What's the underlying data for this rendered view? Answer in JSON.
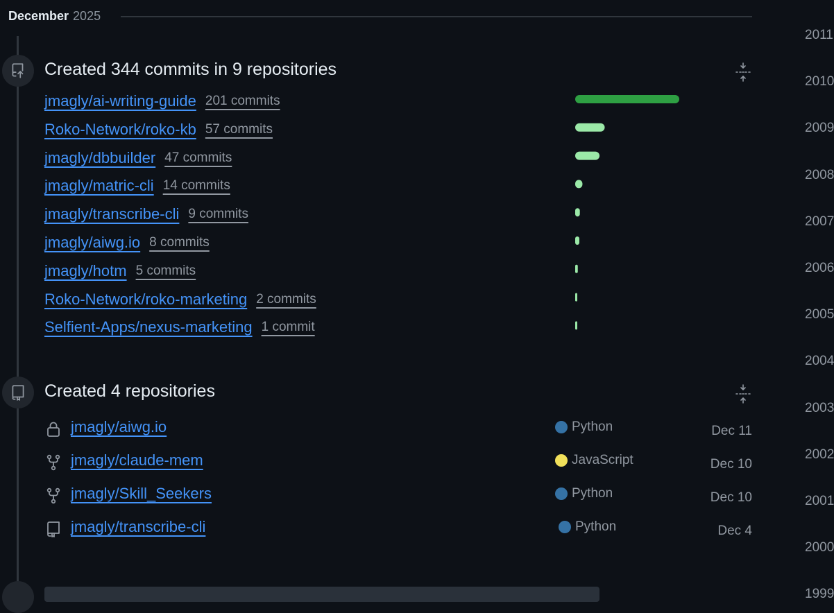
{
  "month": {
    "name": "December",
    "year": "2025"
  },
  "commits_event": {
    "title": "Created 344 commits in 9 repositories",
    "icon": "repo-push-icon",
    "collapse_icon": "fold-icon",
    "repos": [
      {
        "name": "jmagly/ai-writing-guide",
        "commits": "201 commits",
        "count": 201
      },
      {
        "name": "Roko-Network/roko-kb",
        "commits": "57 commits",
        "count": 57
      },
      {
        "name": "jmagly/dbbuilder",
        "commits": "47 commits",
        "count": 47
      },
      {
        "name": "jmagly/matric-cli",
        "commits": "14 commits",
        "count": 14
      },
      {
        "name": "jmagly/transcribe-cli",
        "commits": "9 commits",
        "count": 9
      },
      {
        "name": "jmagly/aiwg.io",
        "commits": "8 commits",
        "count": 8
      },
      {
        "name": "jmagly/hotm",
        "commits": "5 commits",
        "count": 5
      },
      {
        "name": "Roko-Network/roko-marketing",
        "commits": "2 commits",
        "count": 2
      },
      {
        "name": "Selfient-Apps/nexus-marketing",
        "commits": "1 commit",
        "count": 1
      }
    ],
    "bar_colors": {
      "top": "#2ea043",
      "rest": "#9be9a8"
    }
  },
  "repos_event": {
    "title": "Created 4 repositories",
    "icon": "repo-icon",
    "collapse_icon": "fold-icon",
    "repos": [
      {
        "icon": "lock-icon",
        "name": "jmagly/aiwg.io",
        "language": "Python",
        "lang_color": "#3572A5",
        "date": "Dec 11"
      },
      {
        "icon": "repo-forked-icon",
        "name": "jmagly/claude-mem",
        "language": "JavaScript",
        "lang_color": "#f1e05a",
        "date": "Dec 10"
      },
      {
        "icon": "repo-forked-icon",
        "name": "jmagly/Skill_Seekers",
        "language": "Python",
        "lang_color": "#3572A5",
        "date": "Dec 10"
      },
      {
        "icon": "repo-icon",
        "name": "jmagly/transcribe-cli",
        "language": "Python",
        "lang_color": "#3572A5",
        "date": "Dec 4"
      }
    ]
  },
  "years": [
    "2011",
    "2010",
    "2009",
    "2008",
    "2007",
    "2006",
    "2005",
    "2004",
    "2003",
    "2002",
    "2001",
    "2000",
    "1999"
  ],
  "colors": {
    "background": "#0d1117",
    "link": "#4493f8",
    "muted": "#9198a1",
    "border": "#30363d"
  }
}
